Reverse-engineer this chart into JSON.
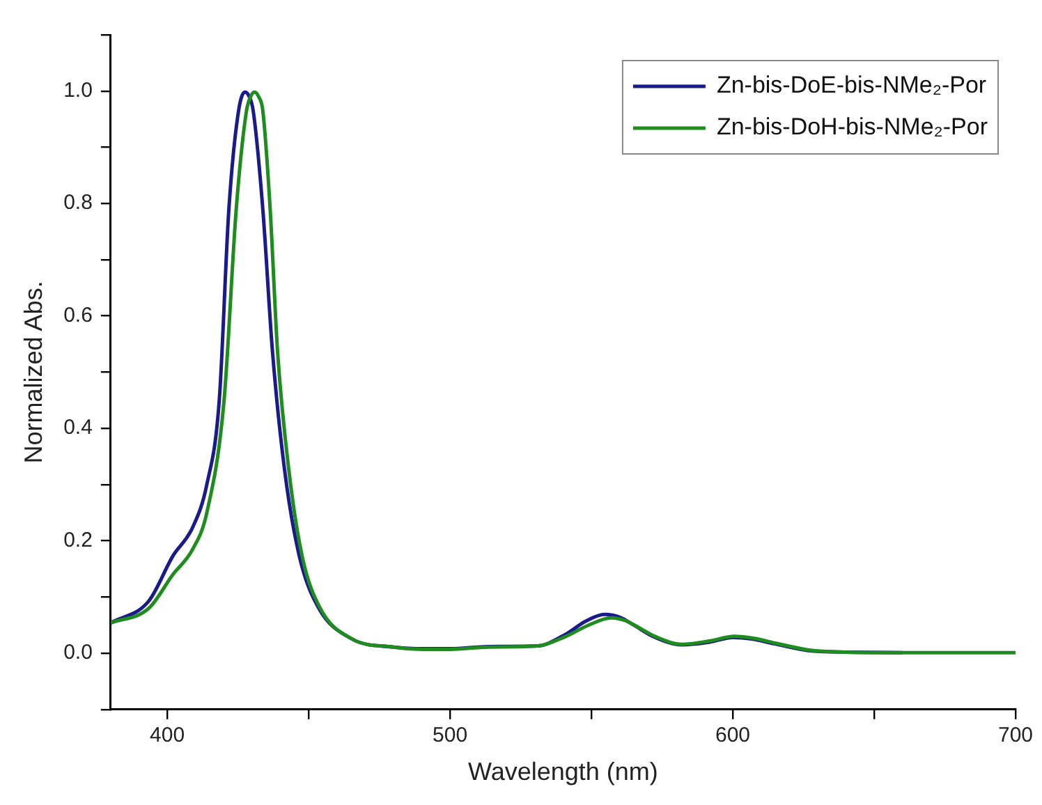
{
  "chart_data": {
    "type": "line",
    "xlabel": "Wavelength (nm)",
    "ylabel": "Normalized Abs.",
    "xlim": [
      380,
      700
    ],
    "xticks": [
      400,
      {
        "value": 450,
        "label": null
      },
      500,
      {
        "value": 550,
        "label": null
      },
      600,
      {
        "value": 650,
        "label": null
      },
      700
    ],
    "ylim": [
      -0.1,
      1.1
    ],
    "yticks": [
      {
        "value": -0.1,
        "label": null
      },
      {
        "value": 0,
        "label": "0.0"
      },
      {
        "value": 0.1,
        "label": null
      },
      {
        "value": 0.2,
        "label": "0.2"
      },
      {
        "value": 0.3,
        "label": null
      },
      {
        "value": 0.4,
        "label": "0.4"
      },
      {
        "value": 0.5,
        "label": null
      },
      {
        "value": 0.6,
        "label": "0.6"
      },
      {
        "value": 0.7,
        "label": null
      },
      {
        "value": 0.8,
        "label": "0.8"
      },
      {
        "value": 0.9,
        "label": null
      },
      {
        "value": 1.0,
        "label": "1.0"
      },
      {
        "value": 1.1,
        "label": null
      }
    ],
    "grid": false,
    "legend": "top right",
    "marker": "none",
    "line_style": "solid",
    "series": [
      {
        "name": "Zn-bis-DoE-bis-NMe₂-Por",
        "color": "#1a1a8c",
        "x": [
          380,
          393.5,
          402,
          409,
          414,
          418.4,
          421.8,
          425.2,
          427.5,
          429,
          430.4,
          433.8,
          437.2,
          441.5,
          446.7,
          453.5,
          465.5,
          480,
          491,
          500,
          513.5,
          531,
          541,
          548,
          554.7,
          560,
          565,
          571.8,
          582,
          592,
          600,
          607,
          614.5,
          628,
          640,
          660
        ],
        "values": [
          0.054,
          0.093,
          0.173,
          0.224,
          0.3,
          0.45,
          0.79,
          0.964,
          0.998,
          0.99,
          0.965,
          0.79,
          0.538,
          0.326,
          0.173,
          0.081,
          0.025,
          0.011,
          0.008,
          0.008,
          0.012,
          0.013,
          0.034,
          0.057,
          0.069,
          0.064,
          0.05,
          0.03,
          0.015,
          0.02,
          0.028,
          0.025,
          0.017,
          0.004,
          0.002,
          0.001
        ]
      },
      {
        "name": "Zn-bis-DoH-bis-NMe₂-Por",
        "color": "#1e8c1e",
        "x": [
          380,
          393.5,
          402,
          409,
          414,
          420.1,
          424.4,
          428,
          429.5,
          430.9,
          432.3,
          433.8,
          436.4,
          439,
          443,
          447.7,
          454,
          465.5,
          480,
          491,
          500,
          513.5,
          531,
          541,
          549,
          557,
          562,
          567,
          572.5,
          582,
          592,
          600.5,
          608,
          615,
          628,
          640,
          660,
          680,
          700
        ],
        "values": [
          0.054,
          0.08,
          0.14,
          0.185,
          0.25,
          0.45,
          0.79,
          0.964,
          0.99,
          0.998,
          0.99,
          0.965,
          0.79,
          0.538,
          0.326,
          0.173,
          0.081,
          0.025,
          0.011,
          0.007,
          0.007,
          0.011,
          0.013,
          0.03,
          0.05,
          0.063,
          0.058,
          0.045,
          0.03,
          0.016,
          0.022,
          0.03,
          0.026,
          0.018,
          0.005,
          0.002,
          0.001,
          0.001,
          0.001
        ]
      }
    ]
  }
}
